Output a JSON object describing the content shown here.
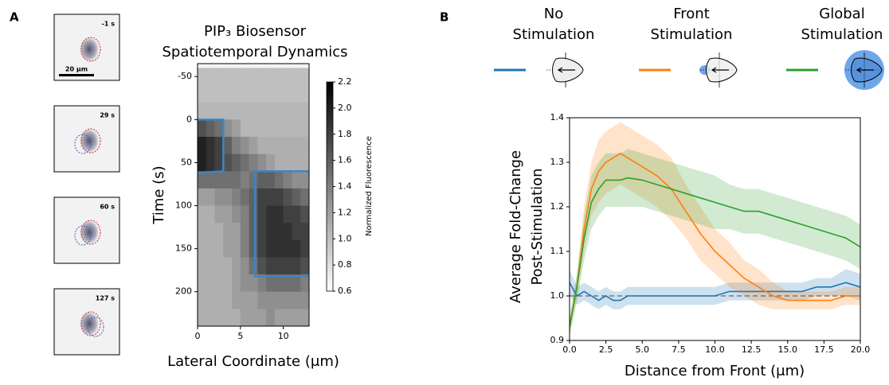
{
  "panel_labels": [
    "A",
    "B"
  ],
  "frames": [
    "-1 s",
    "29 s",
    "60 s",
    "127 s"
  ],
  "scale_bar": "20 μm",
  "chart_data": [
    {
      "type": "heatmap",
      "title": [
        "PIP₃ Biosensor",
        "Spatiotemporal Dynamics"
      ],
      "xlabel": "Lateral Coordinate (μm)",
      "ylabel": "Time (s)",
      "colorbar_label": "Normalized Fluorescence",
      "xlim": [
        0,
        13
      ],
      "ylim": [
        240,
        -65
      ],
      "xticks": [
        0,
        5,
        10
      ],
      "yticks": [
        -50,
        0,
        50,
        100,
        150,
        200
      ],
      "clim": [
        0.6,
        2.2
      ],
      "cticks": [
        0.6,
        0.8,
        {
          "value": 1.0,
          "label": "1.0"
        },
        1.2,
        1.4,
        1.6,
        1.8,
        {
          "value": 2.0,
          "label": "2.0"
        },
        2.2
      ],
      "x_edges": [
        0,
        1,
        2,
        3,
        4,
        5,
        6,
        7,
        8,
        9,
        10,
        11,
        12,
        13
      ],
      "y_edges": [
        -60,
        -40,
        -20,
        0,
        20,
        40,
        60,
        80,
        100,
        120,
        140,
        160,
        180,
        200,
        220,
        240
      ],
      "z": [
        [
          1.0,
          1.0,
          1.0,
          1.0,
          1.0,
          1.0,
          1.0,
          1.0,
          1.0,
          1.0,
          1.0,
          1.0,
          1.0
        ],
        [
          1.0,
          1.0,
          1.0,
          1.0,
          1.0,
          1.0,
          1.0,
          1.0,
          1.0,
          1.0,
          1.0,
          1.0,
          1.0
        ],
        [
          1.05,
          1.05,
          1.05,
          1.05,
          1.05,
          1.05,
          1.05,
          1.05,
          1.05,
          1.05,
          1.05,
          1.05,
          1.05
        ],
        [
          1.7,
          1.6,
          1.5,
          1.3,
          1.2,
          1.05,
          1.05,
          1.05,
          1.05,
          1.05,
          1.05,
          1.05,
          1.05
        ],
        [
          2.0,
          1.9,
          1.8,
          1.6,
          1.4,
          1.3,
          1.2,
          1.1,
          1.1,
          1.1,
          1.1,
          1.1,
          1.1
        ],
        [
          2.0,
          1.9,
          1.8,
          1.7,
          1.6,
          1.5,
          1.4,
          1.3,
          1.2,
          1.1,
          1.1,
          1.1,
          1.1
        ],
        [
          1.5,
          1.5,
          1.5,
          1.5,
          1.5,
          1.4,
          1.5,
          1.6,
          1.6,
          1.5,
          1.4,
          1.3,
          1.3
        ],
        [
          1.2,
          1.2,
          1.3,
          1.3,
          1.4,
          1.5,
          1.6,
          1.8,
          1.8,
          1.8,
          1.7,
          1.6,
          1.5
        ],
        [
          1.1,
          1.1,
          1.2,
          1.2,
          1.3,
          1.4,
          1.6,
          1.8,
          1.9,
          1.9,
          1.8,
          1.8,
          1.7
        ],
        [
          1.1,
          1.1,
          1.1,
          1.2,
          1.2,
          1.4,
          1.6,
          1.8,
          1.9,
          1.9,
          1.9,
          1.8,
          1.8
        ],
        [
          1.1,
          1.1,
          1.1,
          1.2,
          1.2,
          1.4,
          1.6,
          1.8,
          1.9,
          1.9,
          1.9,
          1.9,
          1.8
        ],
        [
          1.1,
          1.1,
          1.1,
          1.1,
          1.2,
          1.3,
          1.5,
          1.7,
          1.8,
          1.8,
          1.8,
          1.8,
          1.7
        ],
        [
          1.1,
          1.1,
          1.1,
          1.1,
          1.2,
          1.3,
          1.3,
          1.4,
          1.5,
          1.5,
          1.5,
          1.5,
          1.4
        ],
        [
          1.1,
          1.1,
          1.1,
          1.1,
          1.2,
          1.2,
          1.2,
          1.3,
          1.3,
          1.3,
          1.3,
          1.3,
          1.3
        ],
        [
          1.1,
          1.1,
          1.1,
          1.1,
          1.1,
          1.2,
          1.2,
          1.2,
          1.3,
          1.2,
          1.2,
          1.2,
          1.2
        ]
      ],
      "outlines": [
        {
          "color": "#3b86c6",
          "x": [
            0,
            3,
            3,
            0
          ],
          "y": [
            0,
            0,
            60,
            62
          ]
        },
        {
          "color": "#3b86c6",
          "x": [
            13,
            6.7,
            6.7,
            13
          ],
          "y": [
            60,
            60,
            182,
            182
          ]
        }
      ]
    },
    {
      "type": "line",
      "xlabel": "Distance from Front (μm)",
      "ylabel": [
        "Average Fold-Change",
        "Post-Stimulation"
      ],
      "xlim": [
        0,
        20
      ],
      "ylim": [
        0.9,
        1.4
      ],
      "xticks": [
        {
          "value": 0,
          "label": "0.0"
        },
        2.5,
        {
          "value": 5,
          "label": "5.0"
        },
        7.5,
        {
          "value": 10,
          "label": "10.0"
        },
        12.5,
        {
          "value": 15,
          "label": "15.0"
        },
        17.5,
        {
          "value": 20,
          "label": "20.0"
        }
      ],
      "yticks": [
        0.9,
        {
          "value": 1.0,
          "label": "1.0"
        },
        1.1,
        1.2,
        1.3,
        1.4
      ],
      "reference_line": 1,
      "x": [
        0,
        0.5,
        1,
        1.5,
        2,
        2.5,
        3,
        3.5,
        4,
        5,
        6,
        7,
        8,
        9,
        10,
        11,
        12,
        13,
        14,
        15,
        16,
        17,
        18,
        19,
        20
      ],
      "series": [
        {
          "name": "No Stimulation",
          "color": "#1f77b4",
          "values": [
            1.03,
            1.0,
            1.01,
            1.0,
            0.99,
            1.0,
            0.99,
            0.99,
            1.0,
            1.0,
            1.0,
            1.0,
            1.0,
            1.0,
            1.0,
            1.01,
            1.01,
            1.01,
            1.01,
            1.01,
            1.01,
            1.02,
            1.02,
            1.03,
            1.02
          ],
          "lower": [
            1.0,
            0.98,
            0.99,
            0.98,
            0.97,
            0.98,
            0.97,
            0.97,
            0.98,
            0.98,
            0.98,
            0.98,
            0.98,
            0.98,
            0.98,
            0.99,
            0.99,
            0.99,
            0.99,
            0.99,
            0.99,
            1.0,
            1.0,
            1.0,
            0.99
          ],
          "upper": [
            1.06,
            1.02,
            1.03,
            1.02,
            1.01,
            1.02,
            1.01,
            1.01,
            1.02,
            1.02,
            1.02,
            1.02,
            1.02,
            1.02,
            1.02,
            1.03,
            1.03,
            1.03,
            1.03,
            1.03,
            1.03,
            1.04,
            1.04,
            1.06,
            1.05
          ]
        },
        {
          "name": "Front Stimulation",
          "color": "#ff7f0e",
          "values": [
            0.93,
            1.02,
            1.15,
            1.24,
            1.28,
            1.3,
            1.31,
            1.32,
            1.31,
            1.29,
            1.27,
            1.24,
            1.19,
            1.14,
            1.1,
            1.07,
            1.04,
            1.02,
            1.0,
            0.99,
            0.99,
            0.99,
            0.99,
            1.0,
            1.0
          ],
          "lower": [
            0.91,
            0.99,
            1.1,
            1.18,
            1.21,
            1.23,
            1.24,
            1.25,
            1.24,
            1.22,
            1.2,
            1.17,
            1.13,
            1.08,
            1.05,
            1.02,
            1.0,
            0.98,
            0.97,
            0.97,
            0.97,
            0.97,
            0.97,
            0.98,
            0.98
          ],
          "upper": [
            0.95,
            1.05,
            1.2,
            1.3,
            1.35,
            1.37,
            1.38,
            1.39,
            1.38,
            1.36,
            1.34,
            1.31,
            1.25,
            1.2,
            1.15,
            1.12,
            1.08,
            1.06,
            1.03,
            1.01,
            1.01,
            1.01,
            1.01,
            1.02,
            1.02
          ]
        },
        {
          "name": "Global Stimulation",
          "color": "#2ca02c",
          "values": [
            0.93,
            1.02,
            1.13,
            1.21,
            1.24,
            1.26,
            1.26,
            1.26,
            1.265,
            1.26,
            1.25,
            1.24,
            1.23,
            1.22,
            1.21,
            1.2,
            1.19,
            1.19,
            1.18,
            1.17,
            1.16,
            1.15,
            1.14,
            1.13,
            1.11
          ],
          "lower": [
            0.91,
            0.99,
            1.08,
            1.15,
            1.18,
            1.2,
            1.2,
            1.2,
            1.2,
            1.2,
            1.19,
            1.18,
            1.17,
            1.16,
            1.15,
            1.15,
            1.14,
            1.14,
            1.13,
            1.12,
            1.11,
            1.1,
            1.09,
            1.08,
            1.06
          ],
          "upper": [
            0.95,
            1.05,
            1.18,
            1.27,
            1.3,
            1.32,
            1.32,
            1.32,
            1.33,
            1.32,
            1.31,
            1.3,
            1.29,
            1.28,
            1.27,
            1.25,
            1.24,
            1.24,
            1.23,
            1.22,
            1.21,
            1.2,
            1.19,
            1.18,
            1.16
          ]
        }
      ]
    }
  ]
}
